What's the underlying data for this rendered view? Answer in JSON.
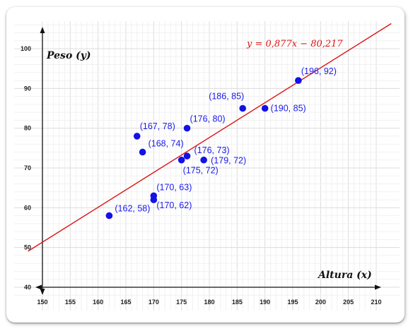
{
  "chart_data": {
    "type": "scatter",
    "title": "",
    "xlabel": "Altura (x)",
    "ylabel": "Peso (y)",
    "xlim": [
      150,
      210
    ],
    "ylim": [
      40,
      100
    ],
    "x_ticks": [
      150,
      155,
      160,
      165,
      170,
      175,
      180,
      185,
      190,
      195,
      200,
      205,
      210
    ],
    "y_ticks": [
      40,
      50,
      60,
      70,
      80,
      90,
      100
    ],
    "grid": true,
    "points": [
      {
        "x": 162,
        "y": 58,
        "label": "(162, 58)"
      },
      {
        "x": 167,
        "y": 78,
        "label": "(167, 78)"
      },
      {
        "x": 168,
        "y": 74,
        "label": "(168, 74)"
      },
      {
        "x": 170,
        "y": 63,
        "label": "(170, 63)"
      },
      {
        "x": 170,
        "y": 62,
        "label": "(170, 62)"
      },
      {
        "x": 175,
        "y": 72,
        "label": "(175, 72)"
      },
      {
        "x": 176,
        "y": 73,
        "label": "(176, 73)"
      },
      {
        "x": 176,
        "y": 80,
        "label": "(176, 80)"
      },
      {
        "x": 179,
        "y": 72,
        "label": "(179, 72)"
      },
      {
        "x": 186,
        "y": 85,
        "label": "(186, 85)"
      },
      {
        "x": 190,
        "y": 85,
        "label": "(190, 85)"
      },
      {
        "x": 196,
        "y": 92,
        "label": "(196, 92)"
      }
    ],
    "regression": {
      "slope": 0.877,
      "intercept": -80.217,
      "equation": "y = 0,877x − 80,217",
      "color": "#dd1111"
    },
    "point_color": "#1212e6"
  }
}
